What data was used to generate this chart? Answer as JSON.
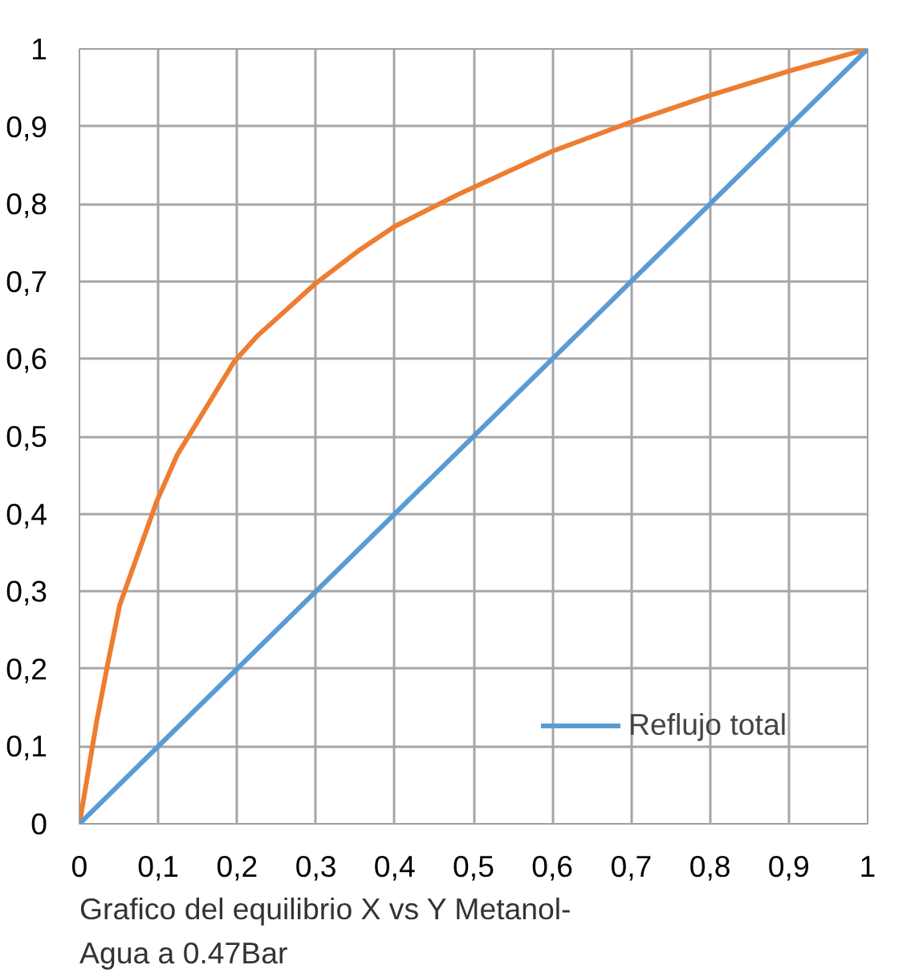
{
  "chart_data": {
    "type": "line",
    "title": "Grafico del equilibrio X vs Y Metanol-Agua a 0.47Bar",
    "xlim": [
      0,
      1
    ],
    "ylim": [
      0,
      1
    ],
    "xticks": [
      0,
      {
        "value": 0.1,
        "label": "0,1"
      },
      {
        "value": 0.2,
        "label": "0,2"
      },
      {
        "value": 0.3,
        "label": "0,3"
      },
      {
        "value": 0.4,
        "label": "0,4"
      },
      {
        "value": 0.5,
        "label": "0,5"
      },
      {
        "value": 0.6,
        "label": "0,6"
      },
      {
        "value": 0.7,
        "label": "0,7"
      },
      {
        "value": 0.8,
        "label": "0,8"
      },
      {
        "value": 0.9,
        "label": "0,9"
      },
      1
    ],
    "yticks": [
      0,
      {
        "value": 0.1,
        "label": "0,1"
      },
      {
        "value": 0.2,
        "label": "0,2"
      },
      {
        "value": 0.3,
        "label": "0,3"
      },
      {
        "value": 0.4,
        "label": "0,4"
      },
      {
        "value": 0.5,
        "label": "0,5"
      },
      {
        "value": 0.6,
        "label": "0,6"
      },
      {
        "value": 0.7,
        "label": "0,7"
      },
      {
        "value": 0.8,
        "label": "0,8"
      },
      {
        "value": 0.9,
        "label": "0,9"
      },
      1
    ],
    "grid": true,
    "legend": "bottom right",
    "series": [
      {
        "color": "#ed7d31",
        "x": [
          0,
          0.022,
          0.036,
          0.051,
          0.098,
          0.124,
          0.196,
          0.225,
          0.298,
          0.356,
          0.4,
          0.48,
          0.6,
          0.698,
          0.8,
          0.902,
          1
        ],
        "values": [
          0,
          0.133,
          0.207,
          0.282,
          0.416,
          0.476,
          0.596,
          0.629,
          0.696,
          0.741,
          0.771,
          0.812,
          0.868,
          0.905,
          0.94,
          0.972,
          1
        ]
      },
      {
        "name": "Reflujo total",
        "color": "#5b9bd5",
        "x": [
          0,
          1
        ],
        "values": [
          0,
          1
        ]
      }
    ]
  }
}
